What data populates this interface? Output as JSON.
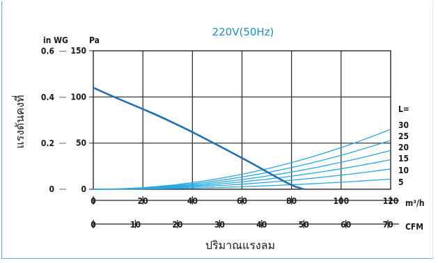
{
  "chart_data": {
    "type": "line",
    "title": "220V(50Hz)",
    "ylabel": "แรงดันคงที่",
    "xlabel": "ปริมาณแรงลม",
    "y_left_unit": "in WG",
    "y_right_unit": "Pa",
    "x_primary_unit": "m³/h",
    "x_secondary_unit": "CFM",
    "x_primary_ticks": [
      0,
      20,
      40,
      60,
      80,
      100,
      120
    ],
    "x_secondary_ticks": [
      0,
      10,
      20,
      30,
      40,
      50,
      60,
      70
    ],
    "y_pa_ticks": [
      0,
      50,
      100,
      150
    ],
    "y_inwg_ticks": [
      0,
      0.2,
      0.4,
      0.6
    ],
    "xlim": [
      0,
      120
    ],
    "ylim": [
      0,
      150
    ],
    "grid": true,
    "fan_curve": {
      "color": "#1f6fb3",
      "x": [
        0,
        10,
        20,
        30,
        40,
        50,
        60,
        70,
        80,
        85
      ],
      "y": [
        110,
        98,
        87,
        75,
        62,
        48,
        34,
        19,
        4,
        0
      ]
    },
    "system_label_header": "L=",
    "system_curves": [
      {
        "name": "30",
        "end_value": 65
      },
      {
        "name": "25",
        "end_value": 53
      },
      {
        "name": "20",
        "end_value": 42
      },
      {
        "name": "15",
        "end_value": 32
      },
      {
        "name": "10",
        "end_value": 22
      },
      {
        "name": "5",
        "end_value": 11
      }
    ],
    "system_color": "#29a8e0"
  }
}
